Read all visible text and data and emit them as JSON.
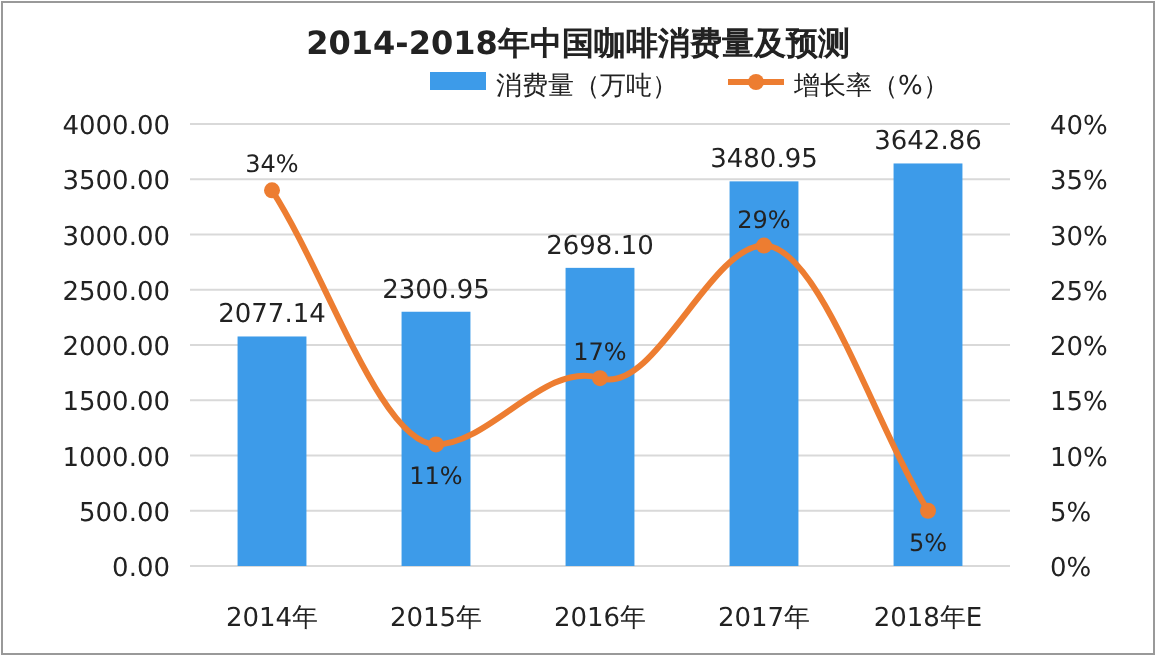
{
  "chart_data": {
    "type": "bar",
    "title": "2014-2018年中国咖啡消费量及预测",
    "categories": [
      "2014年",
      "2015年",
      "2016年",
      "2017年",
      "2018年E"
    ],
    "series": [
      {
        "name": "消费量（万吨）",
        "color": "#3d9be9",
        "values": [
          2077.14,
          2300.95,
          2698.1,
          3480.95,
          3642.86
        ],
        "value_labels": [
          "2077.14",
          "2300.95",
          "2698.10",
          "3480.95",
          "3642.86"
        ]
      },
      {
        "name": "增长率（%）",
        "type": "line",
        "axis": "y2",
        "color": "#ed7d31",
        "values": [
          34,
          11,
          17,
          29,
          5
        ],
        "value_labels": [
          "34%",
          "11%",
          "17%",
          "29%",
          "5%"
        ]
      }
    ],
    "ylim": [
      0,
      4000
    ],
    "yticks": [
      {
        "value": 0,
        "label": "0.00"
      },
      {
        "value": 500,
        "label": "500.00"
      },
      {
        "value": 1000,
        "label": "1000.00"
      },
      {
        "value": 1500,
        "label": "1500.00"
      },
      {
        "value": 2000,
        "label": "2000.00"
      },
      {
        "value": 2500,
        "label": "2500.00"
      },
      {
        "value": 3000,
        "label": "3000.00"
      },
      {
        "value": 3500,
        "label": "3500.00"
      },
      {
        "value": 4000,
        "label": "4000.00"
      }
    ],
    "y2lim": [
      0,
      40
    ],
    "y2ticks": [
      {
        "value": 0,
        "label": "0%"
      },
      {
        "value": 5,
        "label": "5%"
      },
      {
        "value": 10,
        "label": "10%"
      },
      {
        "value": 15,
        "label": "15%"
      },
      {
        "value": 20,
        "label": "20%"
      },
      {
        "value": 25,
        "label": "25%"
      },
      {
        "value": 30,
        "label": "30%"
      },
      {
        "value": 35,
        "label": "35%"
      },
      {
        "value": 40,
        "label": "40%"
      }
    ],
    "grid": "y",
    "legend": "top",
    "marker": "circle",
    "line_style": "solid"
  }
}
